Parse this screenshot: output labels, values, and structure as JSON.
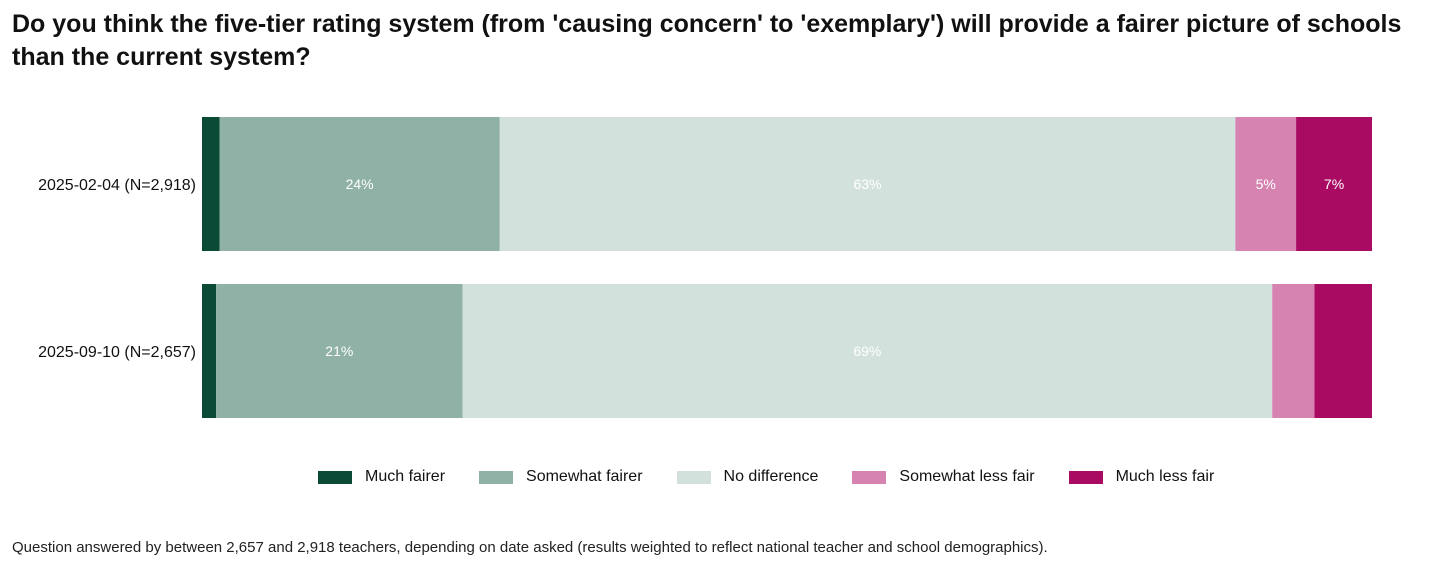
{
  "title": "Do you think the five-tier rating system (from 'causing concern' to 'exemplary') will provide a fairer picture of schools than the current system?",
  "footnote": "Question answered by between 2,657 and 2,918 teachers, depending on date asked (results weighted to reflect national teacher and school demographics).",
  "chart_data": {
    "type": "bar",
    "orientation": "horizontal",
    "stacked": true,
    "title": "Do you think the five-tier rating system (from 'causing concern' to 'exemplary') will provide a fairer picture of schools than the current system?",
    "categories": [
      "2025-02-04 (N=2,918)",
      "2025-09-10 (N=2,657)"
    ],
    "xlim": [
      0,
      100
    ],
    "legend_position": "bottom",
    "series": [
      {
        "name": "Much fairer",
        "color": "#0b4a37",
        "values": [
          1.5,
          1.2
        ],
        "labels": [
          "",
          ""
        ]
      },
      {
        "name": "Somewhat fairer",
        "color": "#8fb1a6",
        "values": [
          24,
          21
        ],
        "labels": [
          "24%",
          "21%"
        ]
      },
      {
        "name": "No difference",
        "color": "#d2e1dc",
        "values": [
          63,
          69
        ],
        "labels": [
          "63%",
          "69%"
        ]
      },
      {
        "name": "Somewhat less fair",
        "color": "#d783b1",
        "values": [
          5.2,
          3.6
        ],
        "labels": [
          "5%",
          ""
        ]
      },
      {
        "name": "Much less fair",
        "color": "#a90a62",
        "values": [
          6.5,
          4.9
        ],
        "labels": [
          "7%",
          ""
        ]
      }
    ]
  }
}
